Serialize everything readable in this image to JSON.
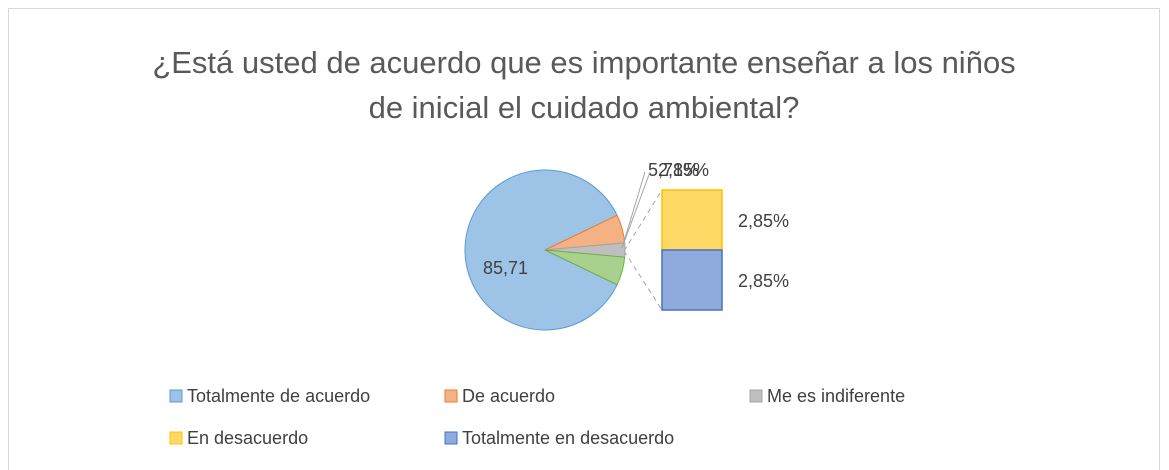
{
  "chart_data": {
    "type": "bar-of-pie",
    "title": "¿Está usted de acuerdo que es importante enseñar a los niños de inicial el cuidado ambiental?",
    "categories": [
      "Totalmente de acuerdo",
      "De acuerdo",
      "Me es indiferente",
      "En desacuerdo",
      "Totalmente en desacuerdo"
    ],
    "values": [
      85.71,
      5.71,
      2.85,
      2.85,
      2.85
    ],
    "value_labels": [
      "85,71",
      "5,71%",
      "2,85%",
      "2,85%",
      "2,85%"
    ],
    "colors": [
      "#9dc3e6",
      "#f4b183",
      "#bfbfbf",
      "#ffd966",
      "#8faadc"
    ],
    "secondary_count": 2,
    "legend": "bottom"
  }
}
